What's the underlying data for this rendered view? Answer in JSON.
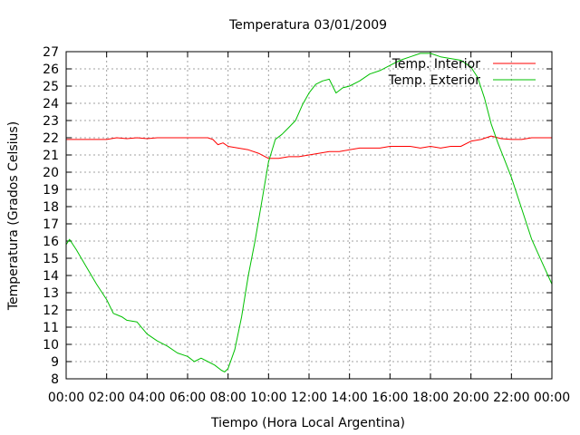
{
  "chart_data": {
    "type": "line",
    "title": "Temperatura 03/01/2009",
    "xlabel": "Tiempo (Hora Local Argentina)",
    "ylabel": "Temperatura (Grados Celsius)",
    "xlim": [
      "00:00",
      "24:00"
    ],
    "ylim": [
      8,
      27
    ],
    "grid": true,
    "legend": "top-right",
    "x_ticks": [
      "00:00",
      "02:00",
      "04:00",
      "06:00",
      "08:00",
      "10:00",
      "12:00",
      "14:00",
      "16:00",
      "18:00",
      "20:00",
      "22:00",
      "00:00"
    ],
    "y_ticks": [
      8,
      9,
      10,
      11,
      12,
      13,
      14,
      15,
      16,
      17,
      18,
      19,
      20,
      21,
      22,
      23,
      24,
      25,
      26,
      27
    ],
    "series": [
      {
        "name": "Temp. Interior",
        "color": "#ff0000",
        "points": [
          [
            "00:00",
            21.9
          ],
          [
            "01:00",
            21.9
          ],
          [
            "02:00",
            21.9
          ],
          [
            "02:30",
            22.0
          ],
          [
            "03:00",
            21.95
          ],
          [
            "03:30",
            22.0
          ],
          [
            "04:00",
            21.95
          ],
          [
            "04:30",
            22.0
          ],
          [
            "05:00",
            22.0
          ],
          [
            "06:00",
            22.0
          ],
          [
            "07:00",
            22.0
          ],
          [
            "07:15",
            21.9
          ],
          [
            "07:30",
            21.6
          ],
          [
            "07:45",
            21.7
          ],
          [
            "08:00",
            21.5
          ],
          [
            "08:30",
            21.4
          ],
          [
            "09:00",
            21.3
          ],
          [
            "09:30",
            21.1
          ],
          [
            "10:00",
            20.8
          ],
          [
            "10:30",
            20.8
          ],
          [
            "11:00",
            20.9
          ],
          [
            "11:30",
            20.9
          ],
          [
            "12:00",
            21.0
          ],
          [
            "12:30",
            21.1
          ],
          [
            "13:00",
            21.2
          ],
          [
            "13:30",
            21.2
          ],
          [
            "14:00",
            21.3
          ],
          [
            "14:30",
            21.4
          ],
          [
            "15:00",
            21.4
          ],
          [
            "15:30",
            21.4
          ],
          [
            "16:00",
            21.5
          ],
          [
            "16:30",
            21.5
          ],
          [
            "17:00",
            21.5
          ],
          [
            "17:30",
            21.4
          ],
          [
            "18:00",
            21.5
          ],
          [
            "18:30",
            21.4
          ],
          [
            "19:00",
            21.5
          ],
          [
            "19:30",
            21.5
          ],
          [
            "20:00",
            21.8
          ],
          [
            "20:30",
            21.9
          ],
          [
            "21:00",
            22.1
          ],
          [
            "21:30",
            21.95
          ],
          [
            "22:00",
            21.9
          ],
          [
            "22:30",
            21.9
          ],
          [
            "23:00",
            22.0
          ],
          [
            "24:00",
            22.0
          ]
        ]
      },
      {
        "name": "Temp. Exterior",
        "color": "#00c000",
        "points": [
          [
            "00:00",
            15.8
          ],
          [
            "00:10",
            16.1
          ],
          [
            "00:30",
            15.5
          ],
          [
            "01:00",
            14.5
          ],
          [
            "01:30",
            13.5
          ],
          [
            "02:00",
            12.6
          ],
          [
            "02:20",
            11.8
          ],
          [
            "02:45",
            11.6
          ],
          [
            "03:00",
            11.4
          ],
          [
            "03:30",
            11.3
          ],
          [
            "04:00",
            10.6
          ],
          [
            "04:30",
            10.2
          ],
          [
            "05:00",
            9.9
          ],
          [
            "05:30",
            9.5
          ],
          [
            "06:00",
            9.3
          ],
          [
            "06:20",
            9.0
          ],
          [
            "06:40",
            9.2
          ],
          [
            "07:00",
            9.0
          ],
          [
            "07:20",
            8.8
          ],
          [
            "07:40",
            8.5
          ],
          [
            "07:50",
            8.4
          ],
          [
            "08:00",
            8.6
          ],
          [
            "08:20",
            9.7
          ],
          [
            "08:40",
            11.6
          ],
          [
            "09:00",
            14.0
          ],
          [
            "09:20",
            16.0
          ],
          [
            "09:40",
            18.3
          ],
          [
            "10:00",
            20.6
          ],
          [
            "10:20",
            21.9
          ],
          [
            "10:40",
            22.2
          ],
          [
            "11:00",
            22.6
          ],
          [
            "11:20",
            23.0
          ],
          [
            "11:40",
            23.9
          ],
          [
            "12:00",
            24.6
          ],
          [
            "12:20",
            25.1
          ],
          [
            "12:40",
            25.3
          ],
          [
            "13:00",
            25.4
          ],
          [
            "13:20",
            24.6
          ],
          [
            "13:40",
            24.9
          ],
          [
            "14:00",
            25.0
          ],
          [
            "14:30",
            25.3
          ],
          [
            "15:00",
            25.7
          ],
          [
            "15:30",
            25.9
          ],
          [
            "16:00",
            26.2
          ],
          [
            "16:30",
            26.5
          ],
          [
            "17:00",
            26.7
          ],
          [
            "17:30",
            26.9
          ],
          [
            "18:00",
            26.9
          ],
          [
            "18:30",
            26.7
          ],
          [
            "19:00",
            26.6
          ],
          [
            "19:30",
            26.5
          ],
          [
            "20:00",
            26.1
          ],
          [
            "20:20",
            25.5
          ],
          [
            "20:40",
            24.3
          ],
          [
            "21:00",
            22.8
          ],
          [
            "21:20",
            21.7
          ],
          [
            "21:40",
            20.7
          ],
          [
            "22:00",
            19.7
          ],
          [
            "22:30",
            17.9
          ],
          [
            "23:00",
            16.1
          ],
          [
            "23:30",
            14.8
          ],
          [
            "24:00",
            13.5
          ]
        ]
      }
    ]
  }
}
